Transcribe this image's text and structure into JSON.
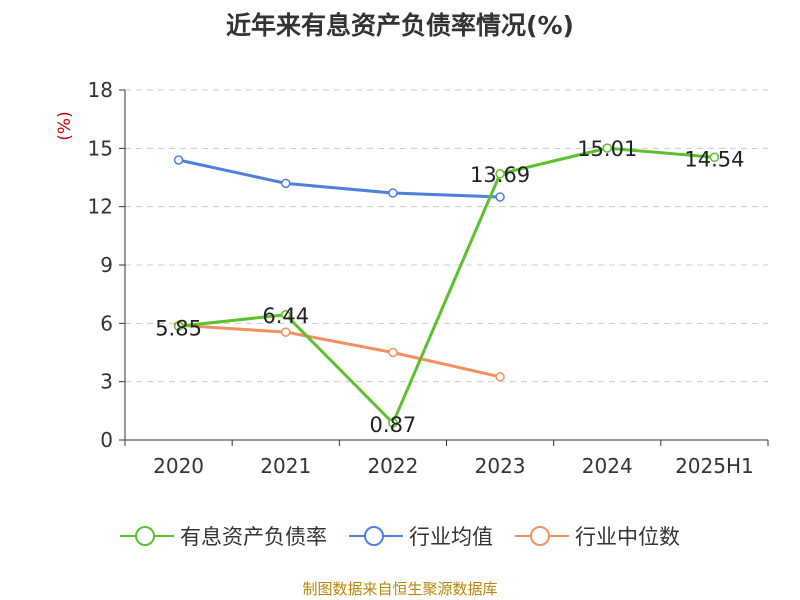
{
  "chart_data": {
    "type": "line",
    "title": "近年来有息资产负债率情况(%)",
    "ylabel": "(%)",
    "xlabel": "",
    "categories": [
      "2020",
      "2021",
      "2022",
      "2023",
      "2024",
      "2025H1"
    ],
    "ylim": [
      0,
      18
    ],
    "yticks": [
      0,
      3,
      6,
      9,
      12,
      15,
      18
    ],
    "grid": true,
    "legend_position": "bottom",
    "series": [
      {
        "name": "有息资产负债率",
        "color": "#5cc12d",
        "values": [
          5.85,
          6.44,
          0.87,
          13.69,
          15.01,
          14.54
        ],
        "show_labels": true
      },
      {
        "name": "行业均值",
        "color": "#4f7fdc",
        "values": [
          14.4,
          13.2,
          12.7,
          12.5,
          null,
          null
        ],
        "show_labels": false
      },
      {
        "name": "行业中位数",
        "color": "#f39060",
        "values": [
          5.9,
          5.55,
          4.5,
          3.25,
          null,
          null
        ],
        "show_labels": false
      }
    ],
    "source": "制图数据来自恒生聚源数据库"
  }
}
